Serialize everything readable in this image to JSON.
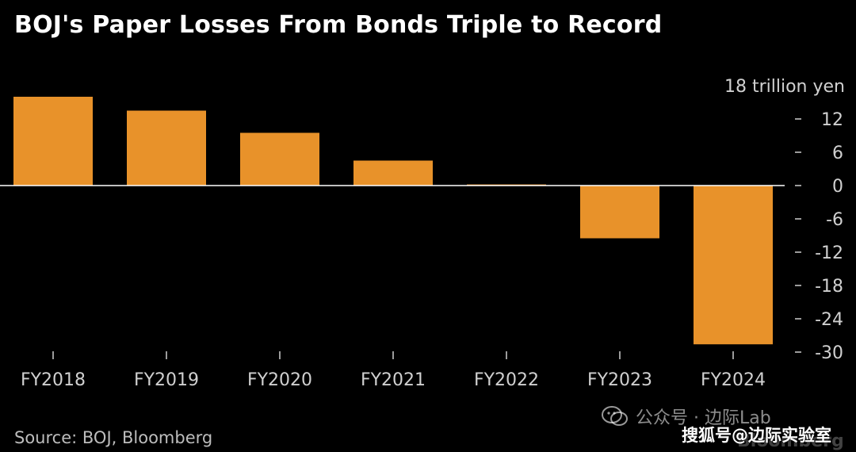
{
  "title": "BOJ's Paper Losses From Bonds Triple to Record",
  "source": "Source: BOJ, Bloomberg",
  "watermark_wechat": "公众号 · 边际Lab",
  "watermark_sohu": "搜狐号@边际实验室",
  "brand": "Bloomberg",
  "colors": {
    "background": "#000000",
    "bar": "#E8922A",
    "zero_line": "#ffffff",
    "tick_text": "#d0d0d0"
  },
  "chart_data": {
    "type": "bar",
    "title": "BOJ's Paper Losses From Bonds Triple to Record",
    "categories": [
      "FY2018",
      "FY2019",
      "FY2020",
      "FY2021",
      "FY2022",
      "FY2023",
      "FY2024"
    ],
    "values": [
      16.0,
      13.5,
      9.5,
      4.5,
      0.2,
      -9.5,
      -28.6
    ],
    "unit_label": "18 trillion yen",
    "y_ticks": [
      "12",
      "6",
      "0",
      "-6",
      "-12",
      "-18",
      "-24",
      "-30"
    ],
    "y_tick_values": [
      12,
      6,
      0,
      -6,
      -12,
      -18,
      -24,
      -30
    ],
    "ylim": [
      -30,
      18
    ],
    "y_axis_position": "right",
    "grid": false,
    "legend": "none"
  }
}
